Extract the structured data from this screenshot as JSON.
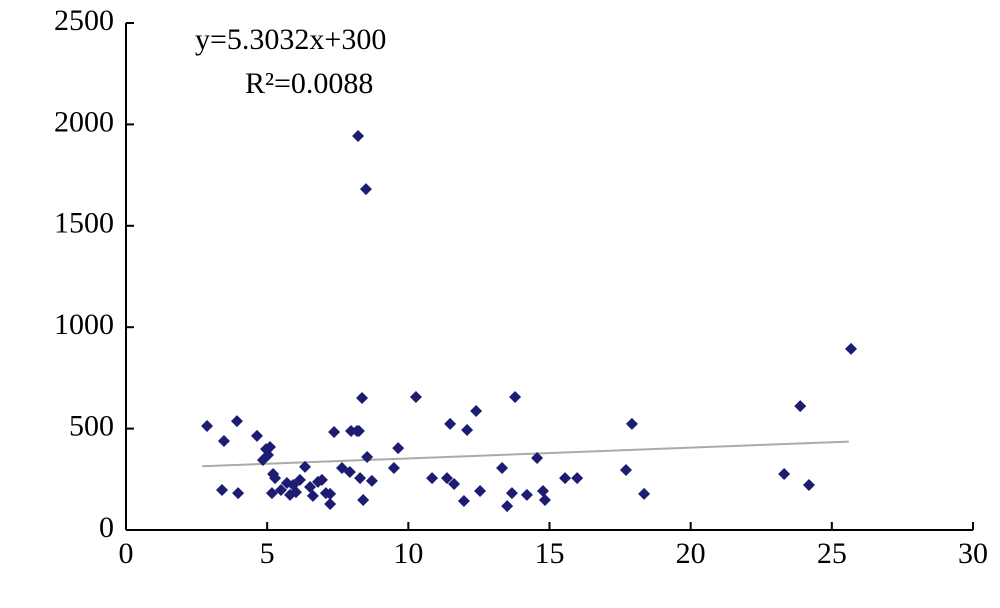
{
  "chart_data": {
    "type": "scatter",
    "annotations": [
      "y=5.3032x+300",
      "R²=0.0088"
    ],
    "color": "#1c1c72",
    "x": [
      2.87,
      3.47,
      3.4,
      3.93,
      3.97,
      4.64,
      4.85,
      4.96,
      5.03,
      5.1,
      5.21,
      5.28,
      5.17,
      5.49,
      5.7,
      5.81,
      5.92,
      6.02,
      6.16,
      6.34,
      6.52,
      6.62,
      6.8,
      6.94,
      7.08,
      7.23,
      7.37,
      7.23,
      7.65,
      7.93,
      7.97,
      8.18,
      8.22,
      8.5,
      8.36,
      8.25,
      8.29,
      8.4,
      8.54,
      8.71,
      9.49,
      9.64,
      10.27,
      10.84,
      11.37,
      11.48,
      11.62,
      11.97,
      12.08,
      12.4,
      12.54,
      13.32,
      13.5,
      13.67,
      13.78,
      14.2,
      14.56,
      14.77,
      14.84,
      15.55,
      15.98,
      17.71,
      17.92,
      18.35,
      23.31,
      23.88,
      24.19,
      25.68
    ],
    "values": [
      513,
      439,
      197,
      537,
      182,
      464,
      345,
      399,
      370,
      409,
      276,
      256,
      182,
      197,
      232,
      173,
      222,
      187,
      247,
      311,
      212,
      168,
      237,
      247,
      182,
      128,
      483,
      178,
      306,
      286,
      488,
      488,
      1943,
      1681,
      651,
      488,
      256,
      148,
      360,
      242,
      306,
      404,
      656,
      256,
      256,
      523,
      227,
      143,
      493,
      587,
      192,
      306,
      118,
      182,
      656,
      173,
      355,
      192,
      148,
      256,
      256,
      296,
      523,
      178,
      276,
      611,
      222,
      893
    ],
    "trendline": {
      "slope": 5.3032,
      "intercept": 300,
      "x": [
        2.7,
        25.6
      ],
      "color": "#aaaaaa"
    },
    "xlim": [
      0,
      30
    ],
    "xticks": [
      0,
      5,
      10,
      15,
      20,
      25,
      30
    ],
    "ylim": [
      0,
      2500
    ],
    "yticks": [
      0,
      500,
      1000,
      1500,
      2000,
      2500
    ],
    "grid": false
  }
}
